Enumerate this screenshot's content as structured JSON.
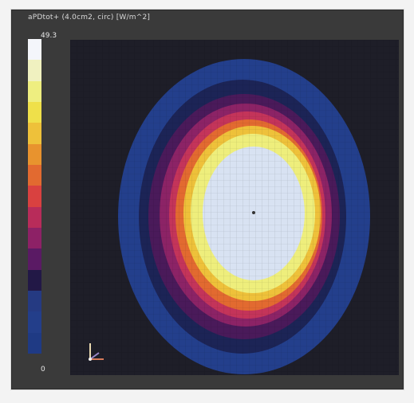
{
  "viewer": {
    "title": "aPDtot+ (4.0cm2, circ) [W/m^2]",
    "background": "#1e1e28"
  },
  "colorbar": {
    "max_label": "49.3",
    "min_label": "0",
    "colors": [
      "#f4f6fb",
      "#f0f1c0",
      "#eeee80",
      "#efe04a",
      "#eec13a",
      "#e8932e",
      "#e26a30",
      "#d94140",
      "#b82c5a",
      "#8d2166",
      "#5a1a64",
      "#221846",
      "#253a82",
      "#233e8a",
      "#1f3a84"
    ]
  },
  "field": {
    "rings": [
      {
        "level": "0",
        "color": "#233f8c"
      },
      {
        "level": "1",
        "color": "#1c2456"
      },
      {
        "level": "2",
        "color": "#4a1a5a"
      },
      {
        "level": "3",
        "color": "#8c2366"
      },
      {
        "level": "4",
        "color": "#c4345a"
      },
      {
        "level": "5",
        "color": "#e26a30"
      },
      {
        "level": "6",
        "color": "#eec13a"
      },
      {
        "level": "7",
        "color": "#eeee7c"
      },
      {
        "level": "8",
        "color": "#d8e2f2"
      }
    ]
  },
  "axes_icon": "xyz-axes-icon"
}
